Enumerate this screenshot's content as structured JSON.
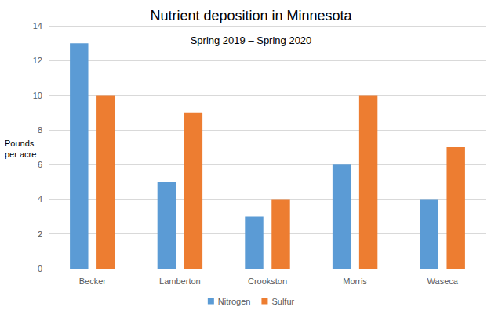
{
  "chart_data": {
    "type": "bar",
    "title": "Nutrient deposition in Minnesota",
    "subtitle": "Spring 2019 – Spring 2020",
    "y_label": "Pounds per acre",
    "categories": [
      "Becker",
      "Lamberton",
      "Crookston",
      "Morris",
      "Waseca"
    ],
    "series": [
      {
        "name": "Nitrogen",
        "color": "#5b9bd5",
        "values": [
          13,
          5,
          3,
          6,
          4
        ]
      },
      {
        "name": "Sulfur",
        "color": "#ed7d31",
        "values": [
          10,
          9,
          4,
          10,
          7
        ]
      }
    ],
    "ylim": [
      0,
      14
    ],
    "yticks": [
      0,
      2,
      4,
      6,
      8,
      10,
      12,
      14
    ],
    "grid": true,
    "legend": "bottom"
  }
}
